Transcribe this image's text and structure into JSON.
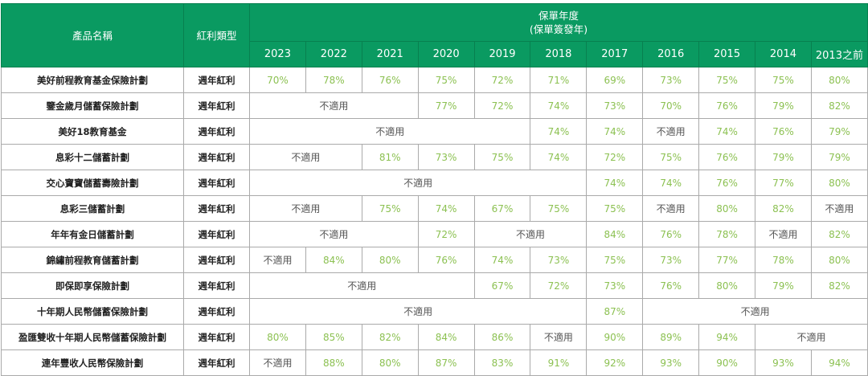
{
  "header": {
    "product_name": "產品名稱",
    "bonus_type": "紅利類型",
    "policy_year": "保單年度",
    "policy_year_sub": "(保單簽發年)",
    "years": [
      "2023",
      "2022",
      "2021",
      "2020",
      "2019",
      "2018",
      "2017",
      "2016",
      "2015",
      "2014",
      "2013之前"
    ]
  },
  "colors": {
    "header_bg": "#0a9a61",
    "value_text": "#8cc152",
    "na_text": "#555555"
  },
  "rows": [
    {
      "name": "美好前程教育基金保險計劃",
      "type": "週年紅利",
      "cells": [
        {
          "v": "70%"
        },
        {
          "v": "78%"
        },
        {
          "v": "76%"
        },
        {
          "v": "75%"
        },
        {
          "v": "72%"
        },
        {
          "v": "71%"
        },
        {
          "v": "69%"
        },
        {
          "v": "73%"
        },
        {
          "v": "75%"
        },
        {
          "v": "75%"
        },
        {
          "v": "80%"
        }
      ]
    },
    {
      "name": "鑒金歲月儲蓄保險計劃",
      "type": "週年紅利",
      "cells": [
        {
          "v": "不適用",
          "span": 3
        },
        {
          "v": "77%"
        },
        {
          "v": "72%"
        },
        {
          "v": "74%"
        },
        {
          "v": "73%"
        },
        {
          "v": "70%"
        },
        {
          "v": "76%"
        },
        {
          "v": "79%"
        },
        {
          "v": "82%"
        }
      ]
    },
    {
      "name": "美好18教育基金",
      "type": "週年紅利",
      "cells": [
        {
          "v": "不適用",
          "span": 5
        },
        {
          "v": "74%"
        },
        {
          "v": "74%"
        },
        {
          "v": "不適用"
        },
        {
          "v": "74%"
        },
        {
          "v": "76%"
        },
        {
          "v": "79%"
        }
      ]
    },
    {
      "name": "息彩十二儲蓄計劃",
      "type": "週年紅利",
      "cells": [
        {
          "v": "不適用",
          "span": 2
        },
        {
          "v": "81%"
        },
        {
          "v": "73%"
        },
        {
          "v": "75%"
        },
        {
          "v": "74%"
        },
        {
          "v": "72%"
        },
        {
          "v": "75%"
        },
        {
          "v": "76%"
        },
        {
          "v": "79%"
        },
        {
          "v": "79%"
        }
      ]
    },
    {
      "name": "交心寶寶儲蓄壽險計劃",
      "type": "週年紅利",
      "cells": [
        {
          "v": "不適用",
          "span": 6
        },
        {
          "v": "74%"
        },
        {
          "v": "74%"
        },
        {
          "v": "76%"
        },
        {
          "v": "77%"
        },
        {
          "v": "80%"
        }
      ]
    },
    {
      "name": "息彩三儲蓄計劃",
      "type": "週年紅利",
      "cells": [
        {
          "v": "不適用",
          "span": 2
        },
        {
          "v": "75%"
        },
        {
          "v": "74%"
        },
        {
          "v": "67%"
        },
        {
          "v": "75%"
        },
        {
          "v": "75%"
        },
        {
          "v": "不適用"
        },
        {
          "v": "80%"
        },
        {
          "v": "82%"
        },
        {
          "v": "不適用"
        }
      ]
    },
    {
      "name": "年年有金日儲蓄計劃",
      "type": "週年紅利",
      "cells": [
        {
          "v": "不適用",
          "span": 3
        },
        {
          "v": "72%"
        },
        {
          "v": "不適用",
          "span": 2
        },
        {
          "v": "84%"
        },
        {
          "v": "76%"
        },
        {
          "v": "78%"
        },
        {
          "v": "不適用"
        },
        {
          "v": "82%"
        }
      ]
    },
    {
      "name": "錦繡前程教育儲蓄計劃",
      "type": "週年紅利",
      "cells": [
        {
          "v": "不適用"
        },
        {
          "v": "84%"
        },
        {
          "v": "80%"
        },
        {
          "v": "76%"
        },
        {
          "v": "74%"
        },
        {
          "v": "73%"
        },
        {
          "v": "75%"
        },
        {
          "v": "73%"
        },
        {
          "v": "77%"
        },
        {
          "v": "78%"
        },
        {
          "v": "80%"
        }
      ]
    },
    {
      "name": "即保即享保險計劃",
      "type": "週年紅利",
      "cells": [
        {
          "v": "不適用",
          "span": 4
        },
        {
          "v": "67%"
        },
        {
          "v": "72%"
        },
        {
          "v": "73%"
        },
        {
          "v": "76%"
        },
        {
          "v": "80%"
        },
        {
          "v": "79%"
        },
        {
          "v": "82%"
        }
      ]
    },
    {
      "name": "十年期人民幣儲蓄保險計劃",
      "type": "週年紅利",
      "cells": [
        {
          "v": "不適用",
          "span": 6
        },
        {
          "v": "87%"
        },
        {
          "v": "不適用",
          "span": 4
        }
      ]
    },
    {
      "name": "盈匯雙收十年期人民幣儲蓄保險計劃",
      "type": "週年紅利",
      "cells": [
        {
          "v": "80%"
        },
        {
          "v": "85%"
        },
        {
          "v": "82%"
        },
        {
          "v": "84%"
        },
        {
          "v": "86%"
        },
        {
          "v": "不適用"
        },
        {
          "v": "90%"
        },
        {
          "v": "89%"
        },
        {
          "v": "94%"
        },
        {
          "v": "不適用",
          "span": 2
        }
      ]
    },
    {
      "name": "連年豐收人民幣保險計劃",
      "type": "週年紅利",
      "cells": [
        {
          "v": "不適用"
        },
        {
          "v": "88%"
        },
        {
          "v": "80%"
        },
        {
          "v": "87%"
        },
        {
          "v": "83%"
        },
        {
          "v": "91%"
        },
        {
          "v": "92%"
        },
        {
          "v": "93%"
        },
        {
          "v": "90%"
        },
        {
          "v": "93%"
        },
        {
          "v": "94%"
        }
      ]
    }
  ]
}
